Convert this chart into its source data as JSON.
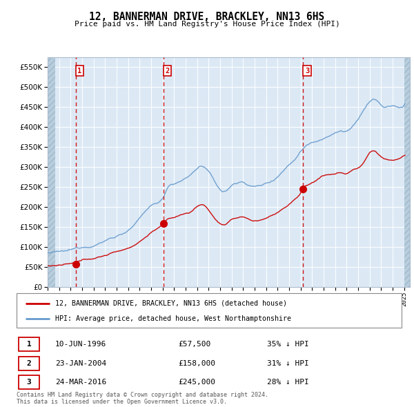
{
  "title": "12, BANNERMAN DRIVE, BRACKLEY, NN13 6HS",
  "subtitle": "Price paid vs. HM Land Registry's House Price Index (HPI)",
  "yticks": [
    0,
    50000,
    100000,
    150000,
    200000,
    250000,
    300000,
    350000,
    400000,
    450000,
    500000,
    550000
  ],
  "xlim_start": 1994.0,
  "xlim_end": 2025.5,
  "ylim_min": 0,
  "ylim_max": 575000,
  "sales": [
    {
      "num": 1,
      "date": "10-JUN-1996",
      "year": 1996.44,
      "price": 57500,
      "pct": "35%",
      "dir": "↓"
    },
    {
      "num": 2,
      "date": "23-JAN-2004",
      "year": 2004.06,
      "price": 158000,
      "pct": "31%",
      "dir": "↓"
    },
    {
      "num": 3,
      "date": "24-MAR-2016",
      "year": 2016.22,
      "price": 245000,
      "pct": "28%",
      "dir": "↓"
    }
  ],
  "legend_label_red": "12, BANNERMAN DRIVE, BRACKLEY, NN13 6HS (detached house)",
  "legend_label_blue": "HPI: Average price, detached house, West Northamptonshire",
  "footer": "Contains HM Land Registry data © Crown copyright and database right 2024.\nThis data is licensed under the Open Government Licence v3.0.",
  "bg_color": "#dce9f5",
  "grid_color": "#c8d8eb",
  "red_line_color": "#cc0000",
  "blue_line_color": "#6699cc"
}
